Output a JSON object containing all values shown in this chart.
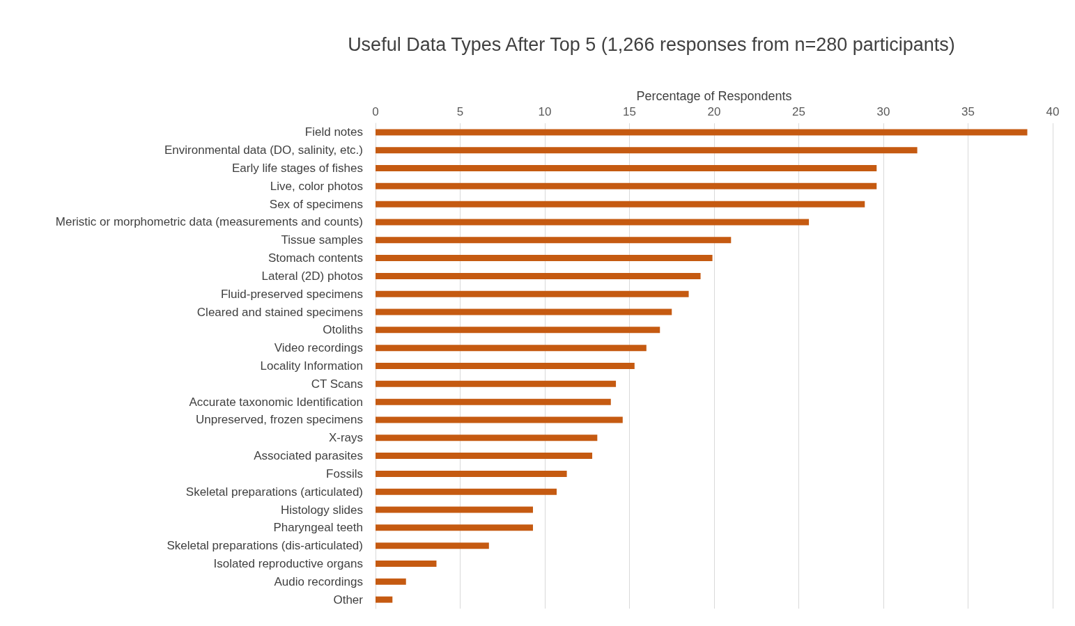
{
  "chart_data": {
    "type": "bar",
    "orientation": "horizontal",
    "title": "Useful Data Types After Top 5 (1,266 responses from n=280 participants)",
    "xlabel": "Percentage of Respondents",
    "categories": [
      "Field notes",
      "Environmental data (DO, salinity, etc.)",
      "Early life stages of fishes",
      "Live, color photos",
      "Sex of specimens",
      "Meristic or morphometric data (measurements and counts)",
      "Tissue samples",
      "Stomach contents",
      "Lateral (2D) photos",
      "Fluid-preserved specimens",
      "Cleared and stained specimens",
      "Otoliths",
      "Video recordings",
      "Locality Information",
      "CT Scans",
      "Accurate taxonomic Identification",
      "Unpreserved, frozen specimens",
      "X-rays",
      "Associated parasites",
      "Fossils",
      "Skeletal preparations (articulated)",
      "Histology slides",
      "Pharyngeal teeth",
      "Skeletal preparations (dis-articulated)",
      "Isolated reproductive organs",
      "Audio recordings",
      "Other"
    ],
    "values": [
      38.5,
      32.0,
      29.6,
      29.6,
      28.9,
      25.6,
      21.0,
      19.9,
      19.2,
      18.5,
      17.5,
      16.8,
      16.0,
      15.3,
      14.2,
      13.9,
      14.6,
      13.1,
      12.8,
      11.3,
      10.7,
      9.3,
      9.3,
      6.7,
      3.6,
      1.8,
      1.0
    ],
    "color": "#c55a11",
    "xlim": [
      0,
      40
    ],
    "xticks": [
      0,
      5,
      10,
      15,
      20,
      25,
      30,
      35,
      40
    ],
    "grid": "x"
  }
}
